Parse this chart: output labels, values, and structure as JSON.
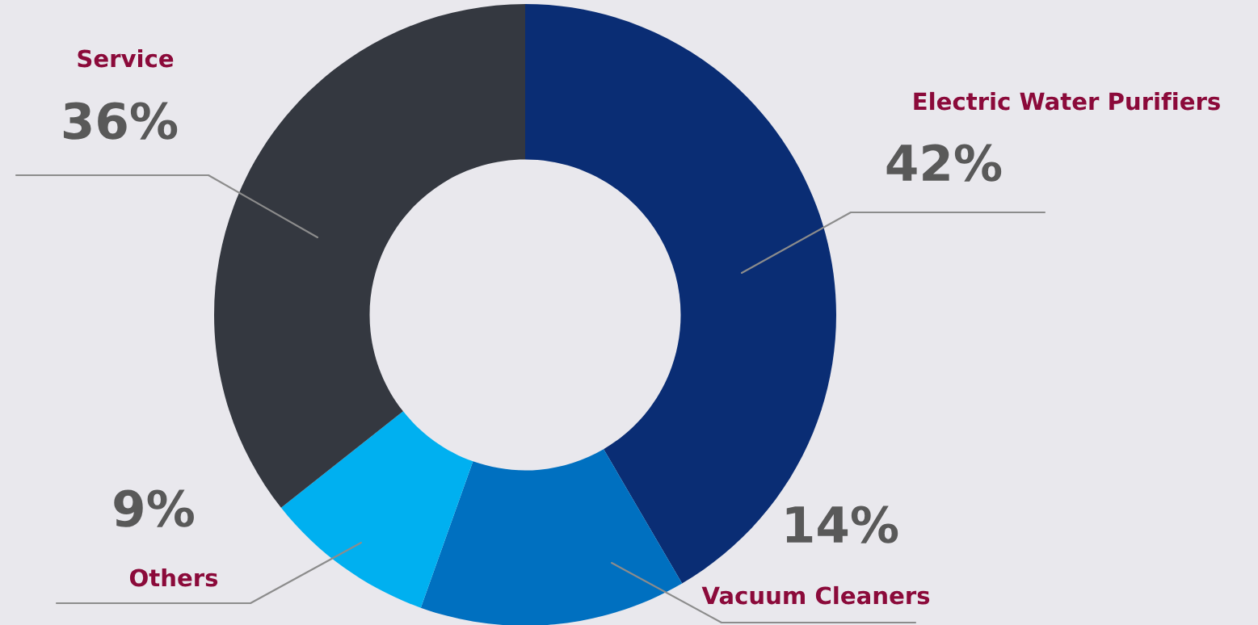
{
  "chart_data": {
    "type": "donut",
    "categories": [
      "Electric Water Purifiers",
      "Vacuum Cleaners",
      "Others",
      "Service"
    ],
    "values": [
      42,
      14,
      9,
      36
    ],
    "value_labels": [
      "42%",
      "14%",
      "9%",
      "36%"
    ],
    "colors": [
      "#0a2d74",
      "#0070c0",
      "#00b0f0",
      "#343840"
    ]
  }
}
